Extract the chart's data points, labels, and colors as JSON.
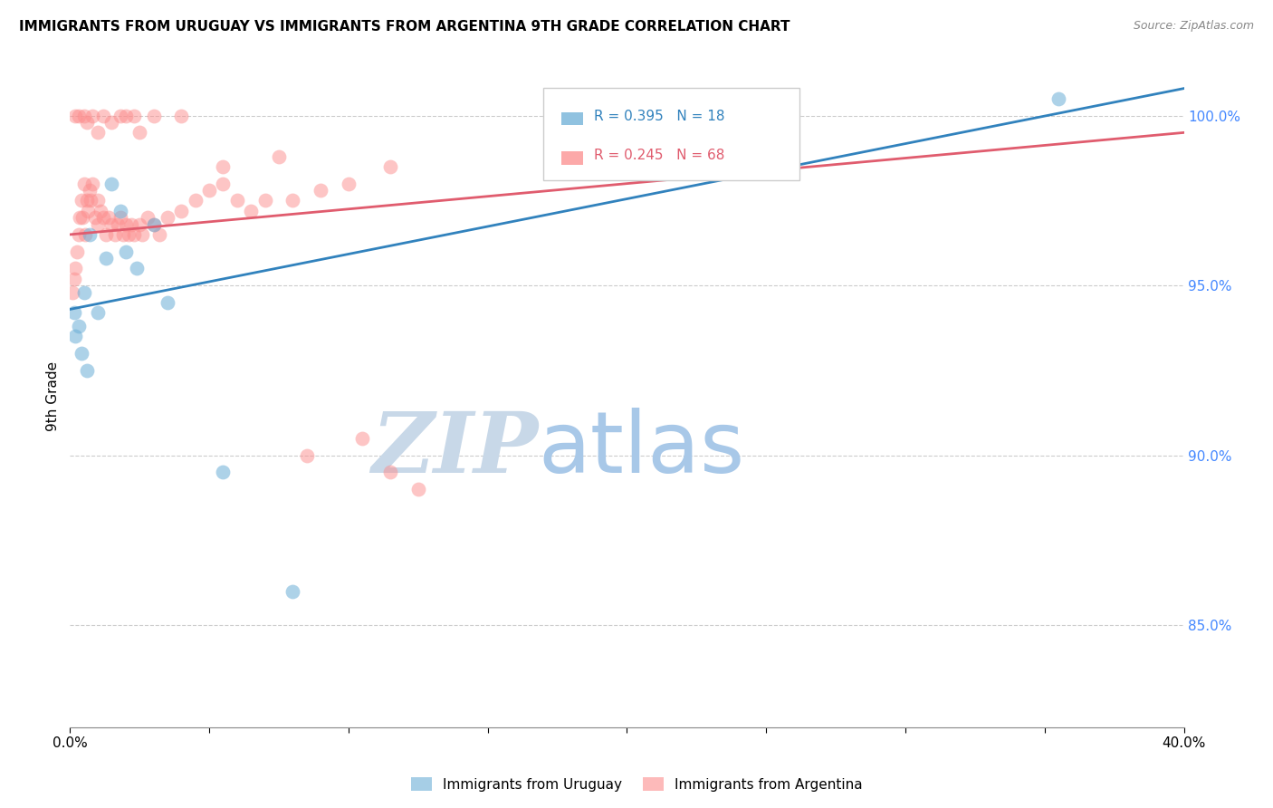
{
  "title": "IMMIGRANTS FROM URUGUAY VS IMMIGRANTS FROM ARGENTINA 9TH GRADE CORRELATION CHART",
  "source": "Source: ZipAtlas.com",
  "ylabel": "9th Grade",
  "yticks": [
    100.0,
    95.0,
    90.0,
    85.0
  ],
  "ytick_labels": [
    "100.0%",
    "95.0%",
    "90.0%",
    "85.0%"
  ],
  "xlim": [
    0.0,
    40.0
  ],
  "ylim": [
    82.0,
    101.5
  ],
  "legend_blue_label": "Immigrants from Uruguay",
  "legend_pink_label": "Immigrants from Argentina",
  "legend_blue_R": "R = 0.395",
  "legend_blue_N": "N = 18",
  "legend_pink_R": "R = 0.245",
  "legend_pink_N": "N = 68",
  "blue_color": "#6baed6",
  "pink_color": "#fc8d8d",
  "blue_line_color": "#3182bd",
  "pink_line_color": "#e05c6e",
  "watermark_zip": "ZIP",
  "watermark_atlas": "atlas",
  "watermark_color_zip": "#c8d8e8",
  "watermark_color_atlas": "#a8c8e8",
  "blue_line_x0": 0.0,
  "blue_line_y0": 94.3,
  "blue_line_x1": 40.0,
  "blue_line_y1": 100.8,
  "pink_line_x0": 0.0,
  "pink_line_y0": 96.5,
  "pink_line_x1": 40.0,
  "pink_line_y1": 99.5,
  "uruguay_x": [
    0.2,
    0.4,
    0.5,
    0.7,
    1.0,
    1.3,
    1.5,
    1.8,
    2.0,
    2.4,
    3.0,
    3.5,
    5.5,
    8.0,
    0.15,
    0.3,
    0.6,
    35.5
  ],
  "uruguay_y": [
    93.5,
    93.0,
    94.8,
    96.5,
    94.2,
    95.8,
    98.0,
    97.2,
    96.0,
    95.5,
    96.8,
    94.5,
    89.5,
    86.0,
    94.2,
    93.8,
    92.5,
    100.5
  ],
  "argentina_x": [
    0.1,
    0.15,
    0.2,
    0.25,
    0.3,
    0.35,
    0.4,
    0.45,
    0.5,
    0.55,
    0.6,
    0.65,
    0.7,
    0.75,
    0.8,
    0.9,
    1.0,
    1.0,
    1.1,
    1.2,
    1.3,
    1.4,
    1.5,
    1.6,
    1.7,
    1.8,
    1.9,
    2.0,
    2.1,
    2.2,
    2.3,
    2.5,
    2.6,
    2.8,
    3.0,
    3.2,
    3.5,
    4.0,
    4.5,
    5.0,
    5.5,
    6.0,
    6.5,
    7.0,
    8.0,
    9.0,
    10.0,
    11.5,
    0.2,
    0.3,
    0.5,
    0.6,
    0.8,
    1.0,
    1.2,
    1.5,
    1.8,
    2.0,
    2.3,
    2.5,
    3.0,
    4.0,
    5.5,
    7.5,
    8.5,
    10.5,
    11.5,
    12.5
  ],
  "argentina_y": [
    94.8,
    95.2,
    95.5,
    96.0,
    96.5,
    97.0,
    97.5,
    97.0,
    98.0,
    96.5,
    97.5,
    97.2,
    97.8,
    97.5,
    98.0,
    97.0,
    97.5,
    96.8,
    97.2,
    97.0,
    96.5,
    97.0,
    96.8,
    96.5,
    96.8,
    97.0,
    96.5,
    96.8,
    96.5,
    96.8,
    96.5,
    96.8,
    96.5,
    97.0,
    96.8,
    96.5,
    97.0,
    97.2,
    97.5,
    97.8,
    98.0,
    97.5,
    97.2,
    97.5,
    97.5,
    97.8,
    98.0,
    98.5,
    100.0,
    100.0,
    100.0,
    99.8,
    100.0,
    99.5,
    100.0,
    99.8,
    100.0,
    100.0,
    100.0,
    99.5,
    100.0,
    100.0,
    98.5,
    98.8,
    90.0,
    90.5,
    89.5,
    89.0
  ]
}
